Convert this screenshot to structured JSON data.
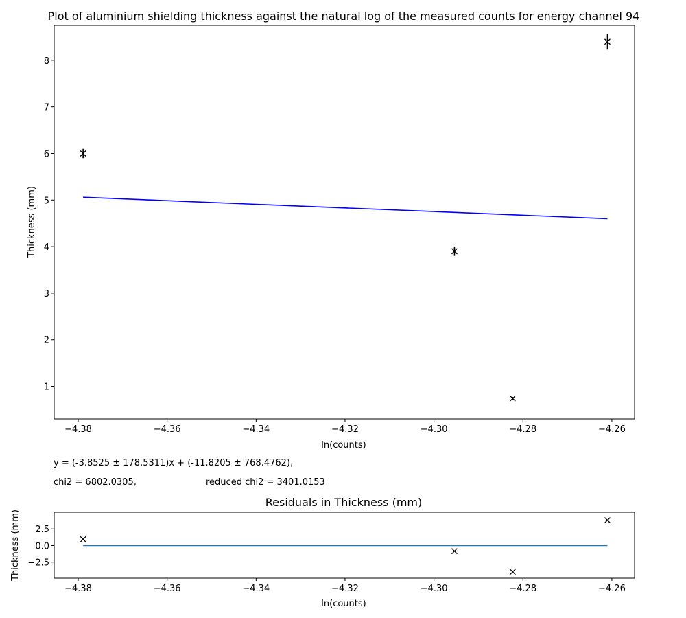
{
  "chart_data": [
    {
      "type": "scatter",
      "title": "Plot of aluminium shielding thickness against the natural log of the measured counts for energy channel 94",
      "xlabel": "ln(counts)",
      "ylabel": "Thickness (mm)",
      "xlim": [
        -4.3854,
        -4.2549
      ],
      "ylim": [
        0.3,
        8.75
      ],
      "xticks": [
        -4.38,
        -4.36,
        -4.34,
        -4.32,
        -4.3,
        -4.28,
        -4.26
      ],
      "xtick_labels": [
        "−4.38",
        "−4.36",
        "−4.34",
        "−4.32",
        "−4.30",
        "−4.28",
        "−4.26"
      ],
      "yticks": [
        1,
        2,
        3,
        4,
        5,
        6,
        7,
        8
      ],
      "ytick_labels": [
        "1",
        "2",
        "3",
        "4",
        "5",
        "6",
        "7",
        "8"
      ],
      "grid": false,
      "series": [
        {
          "kind": "errorbar-scatter",
          "marker": "x",
          "color": "#000000",
          "x": [
            -4.3789,
            -4.2954,
            -4.2823,
            -4.261
          ],
          "y": [
            6.0,
            3.9,
            0.74,
            8.4
          ],
          "yerr": [
            0.1,
            0.1,
            0.03,
            0.17
          ]
        },
        {
          "kind": "fit-line",
          "color": "#0000ff",
          "x": [
            -4.3789,
            -4.261
          ],
          "y": [
            5.06,
            4.6
          ]
        }
      ]
    },
    {
      "type": "scatter",
      "title": "Residuals in Thickness (mm)",
      "xlabel": "ln(counts)",
      "ylabel": "Thickness (mm)",
      "xlim": [
        -4.3854,
        -4.2549
      ],
      "ylim": [
        -4.9,
        5.0
      ],
      "xticks": [
        -4.38,
        -4.36,
        -4.34,
        -4.32,
        -4.3,
        -4.28,
        -4.26
      ],
      "xtick_labels": [
        "−4.38",
        "−4.36",
        "−4.34",
        "−4.32",
        "−4.30",
        "−4.28",
        "−4.26"
      ],
      "yticks": [
        2.5,
        0.0,
        -2.5
      ],
      "ytick_labels": [
        "2.5",
        "0.0",
        "−2.5"
      ],
      "grid": false,
      "series": [
        {
          "kind": "scatter",
          "marker": "x",
          "color": "#000000",
          "x": [
            -4.3789,
            -4.2954,
            -4.2823,
            -4.261
          ],
          "y": [
            0.95,
            -0.85,
            -3.95,
            3.8
          ]
        },
        {
          "kind": "zero-line",
          "color": "#1f77b4",
          "x": [
            -4.3789,
            -4.261
          ],
          "y": [
            0,
            0
          ]
        }
      ]
    }
  ],
  "annotations": {
    "equation": "y = (-3.8525 ± 178.5311)x + (-11.8205 ± 768.4762),",
    "chi2": "chi2 = 6802.0305,",
    "reduced_chi2": "reduced chi2 = 3401.0153"
  }
}
